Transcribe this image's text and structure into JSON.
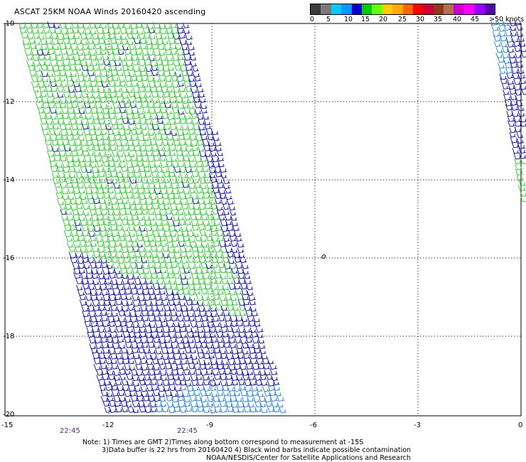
{
  "title": "ASCAT 25KM NOAA Winds 20160420 ascending",
  "legend": {
    "labels": [
      "0",
      "5",
      "10",
      "15",
      "20",
      "25",
      "30",
      "35",
      "40",
      "45",
      ">50 knots"
    ],
    "colors": [
      "#3c3c3c",
      "#7a7a7a",
      "#00ccff",
      "#0099ff",
      "#0000cc",
      "#00cc00",
      "#66ff00",
      "#ffcc00",
      "#ffaa00",
      "#ff6600",
      "#ff0000",
      "#cc0033",
      "#8b3a1a",
      "#b07050",
      "#cc00cc",
      "#ff00ff",
      "#9900ff",
      "#5500aa"
    ]
  },
  "axes": {
    "y_labels": [
      "-10",
      "-12",
      "-14",
      "-16",
      "-18",
      "-20"
    ],
    "x_labels": [
      "-15",
      "-12",
      "-9",
      "-6",
      "-3",
      "0"
    ]
  },
  "times": [
    "22:45",
    "22:45"
  ],
  "island_label": "o",
  "notes": {
    "line1": "Note: 1) Times are GMT 2)Times along bottom correspond to measurement at -15S",
    "line2": "3)Data buffer is 22 hrs from 20160420 4) Black wind barbs indicate possible contamination",
    "line3": "NOAA/NESDIS/Center for Satellite Applications and Research"
  },
  "colors": {
    "green_barbs": "#22cc22",
    "blue_barbs": "#0000aa",
    "light_blue_barbs": "#1a7fe0"
  }
}
